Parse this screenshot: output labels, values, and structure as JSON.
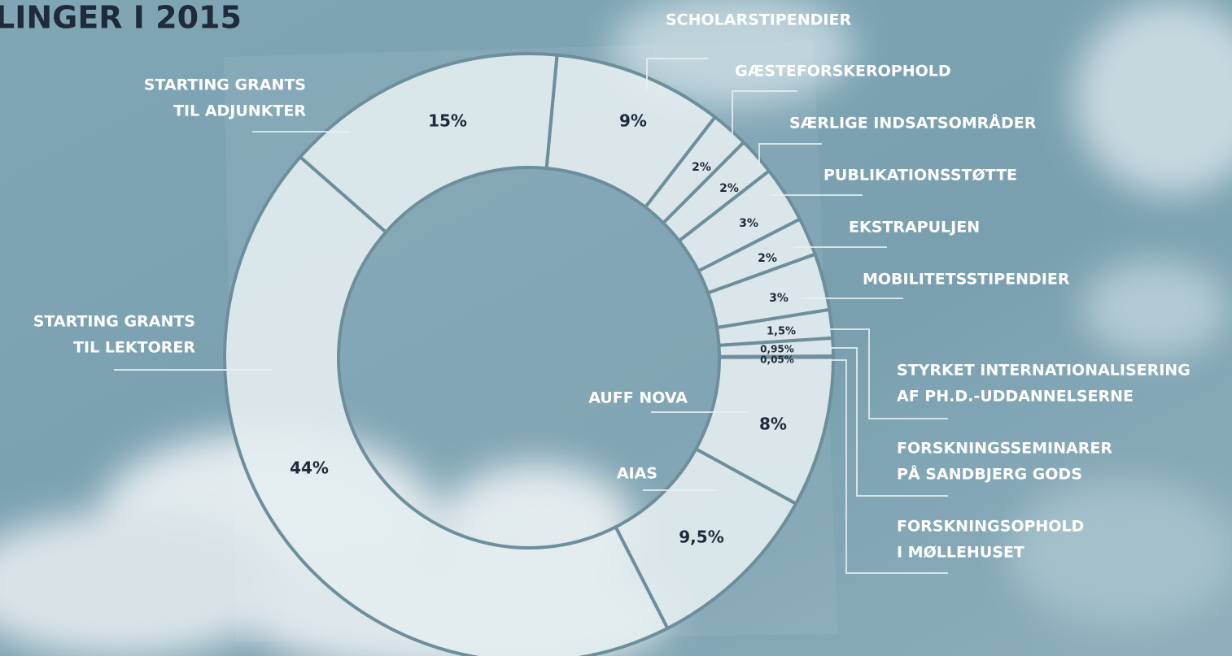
{
  "chart_data": {
    "type": "donut",
    "title": "LINGER I 2015",
    "categories": [
      [
        "SCHOLARSTIPENDIER"
      ],
      [
        "GÆSTEFORSKEROPHOLD"
      ],
      [
        "SÆRLIGE INDSATSOMRÅDER"
      ],
      [
        "PUBLIKATIONSSTØTTE"
      ],
      [
        "EKSTRAPULJEN"
      ],
      [
        "MOBILITETSSTIPENDIER"
      ],
      [
        "STYRKET INTERNATIONALISERING",
        "AF PH.D.-UDDANNELSERNE"
      ],
      [
        "FORSKNINGSSEMINARER",
        "PÅ SANDBJERG GODS"
      ],
      [
        "FORSKNINGSOPHOLD",
        "I MØLLEHUSET"
      ],
      [
        "AUFF NOVA"
      ],
      [
        "AIAS"
      ],
      [
        "STARTING GRANTS",
        "TIL LEKTORER"
      ],
      [
        "STARTING GRANTS",
        "TIL ADJUNKTER"
      ]
    ],
    "values": [
      9,
      2,
      2,
      3,
      2,
      3,
      1.5,
      0.95,
      0.05,
      8,
      9.5,
      44,
      15
    ],
    "value_labels": [
      "9%",
      "2%",
      "2%",
      "3%",
      "2%",
      "3%",
      "1,5%",
      "0,95%",
      "0,05%",
      "8%",
      "9,5%",
      "44%",
      "15%"
    ],
    "color": "#e3edf0"
  }
}
